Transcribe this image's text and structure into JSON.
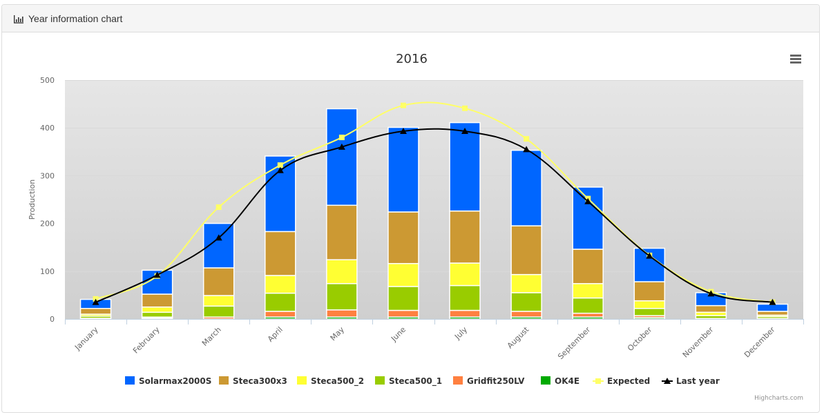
{
  "panel": {
    "icon": "bar-chart-icon",
    "title": "Year information chart"
  },
  "menu": {
    "icon": "hamburger-menu-icon"
  },
  "chart_data": {
    "type": "bar",
    "stacked": true,
    "title": "2016",
    "xlabel": "",
    "ylabel": "Production",
    "ylim": [
      0,
      500
    ],
    "yticks": [
      0,
      100,
      200,
      300,
      400,
      500
    ],
    "grid": true,
    "legend": "bottom-center",
    "credits": "Highcharts.com",
    "categories": [
      "January",
      "February",
      "March",
      "April",
      "May",
      "June",
      "July",
      "August",
      "September",
      "October",
      "November",
      "December"
    ],
    "series": [
      {
        "name": "Solarmax2000S",
        "type": "bar",
        "color": "#0066ff",
        "values": [
          19,
          50,
          93,
          158,
          202,
          177,
          185,
          158,
          130,
          70,
          27,
          15
        ]
      },
      {
        "name": "Steca300x3",
        "type": "bar",
        "color": "#cc9933",
        "values": [
          12,
          27,
          58,
          92,
          114,
          108,
          109,
          102,
          72,
          40,
          14,
          8
        ]
      },
      {
        "name": "Steca500_2",
        "type": "bar",
        "color": "#ffff33",
        "values": [
          4,
          11,
          22,
          37,
          50,
          48,
          47,
          38,
          30,
          16,
          7,
          3
        ]
      },
      {
        "name": "Steca500_1",
        "type": "bar",
        "color": "#99cc00",
        "values": [
          4.5,
          10,
          23,
          38,
          55,
          50,
          52,
          39,
          32,
          15,
          6,
          4
        ]
      },
      {
        "name": "Gridfit250LV",
        "type": "bar",
        "color": "#ff8040",
        "values": [
          1,
          2,
          4,
          12,
          15,
          14,
          14,
          12,
          8,
          4,
          1,
          0.5
        ]
      },
      {
        "name": "OK4E",
        "type": "bar",
        "color": "#00aa00",
        "values": [
          0.5,
          2,
          0,
          4,
          4,
          4,
          4,
          4,
          4,
          3,
          0,
          0.5
        ]
      },
      {
        "name": "Expected",
        "type": "line",
        "color": "#ffff66",
        "marker": "square",
        "values": [
          42,
          90,
          234,
          322,
          380,
          447,
          441,
          377,
          252,
          133,
          57,
          35
        ]
      },
      {
        "name": "Last year",
        "type": "line",
        "color": "#000000",
        "marker": "triangle",
        "values": [
          35,
          92,
          170,
          311,
          360,
          393,
          393,
          355,
          246,
          132,
          53,
          35
        ]
      }
    ]
  }
}
